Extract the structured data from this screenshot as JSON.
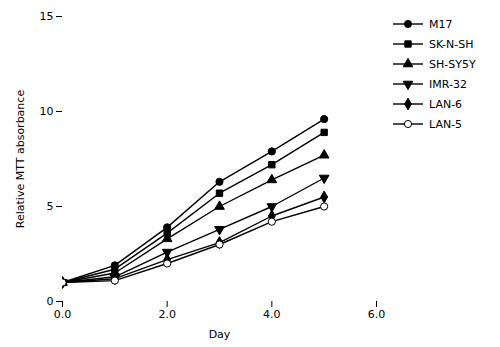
{
  "chart_data": {
    "type": "line",
    "xlabel": "Day",
    "ylabel": "Relative MTT absorbance",
    "xlim": [
      0,
      6
    ],
    "ylim": [
      0,
      15
    ],
    "xticks": [
      0,
      2,
      4,
      6
    ],
    "yticks": [
      0,
      5,
      10,
      15
    ],
    "grid": false,
    "legend": "right",
    "x": [
      0,
      1,
      2,
      3,
      4,
      5
    ],
    "series": [
      {
        "name": "M17",
        "values": [
          1.0,
          1.9,
          3.9,
          6.3,
          7.9,
          9.6
        ],
        "color": "#000000",
        "marker": "circle"
      },
      {
        "name": "SK-N-SH",
        "values": [
          1.0,
          1.7,
          3.6,
          5.7,
          7.2,
          8.9
        ],
        "color": "#000000",
        "marker": "square"
      },
      {
        "name": "SH-SY5Y",
        "values": [
          1.0,
          1.5,
          3.3,
          5.0,
          6.4,
          7.7
        ],
        "color": "#000000",
        "marker": "triangle"
      },
      {
        "name": "IMR-32",
        "values": [
          1.0,
          1.3,
          2.6,
          3.8,
          5.0,
          6.5
        ],
        "color": "#000000",
        "marker": "triangle-down"
      },
      {
        "name": "LAN-6",
        "values": [
          1.0,
          1.2,
          2.2,
          3.1,
          4.5,
          5.5
        ],
        "color": "#000000",
        "marker": "diamond"
      },
      {
        "name": "LAN-5",
        "values": [
          1.0,
          1.1,
          2.0,
          3.0,
          4.2,
          5.0
        ],
        "color": "#000000",
        "marker": "circle-open"
      }
    ]
  }
}
